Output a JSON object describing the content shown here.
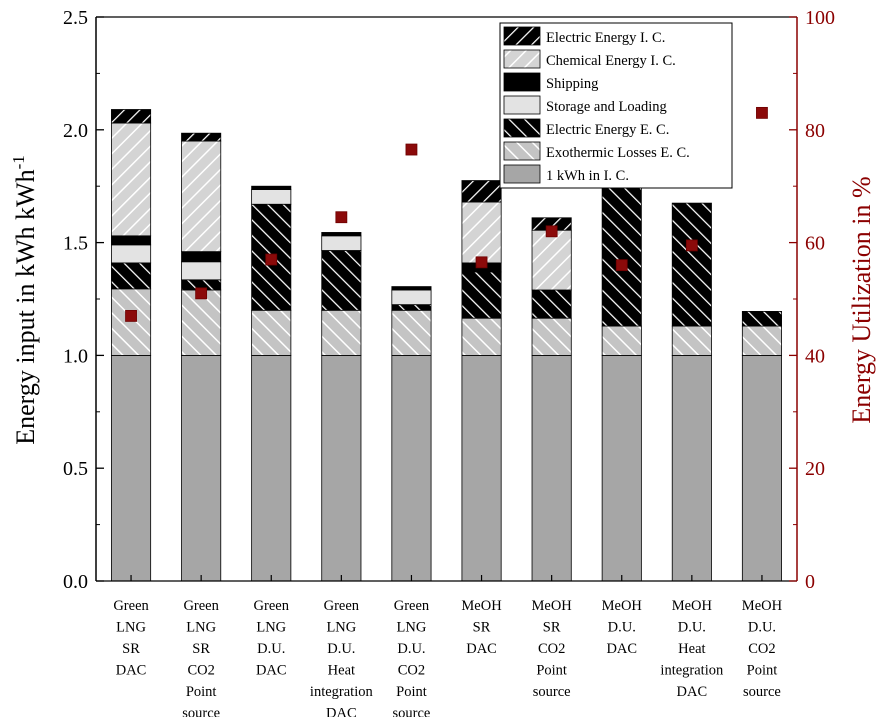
{
  "chart_data": {
    "type": "bar",
    "stacked": true,
    "categories": [
      [
        "Green",
        "LNG",
        "SR",
        "DAC"
      ],
      [
        "Green",
        "LNG",
        "SR",
        "CO2",
        "Point",
        "source"
      ],
      [
        "Green",
        "LNG",
        "D.U.",
        "DAC"
      ],
      [
        "Green",
        "LNG",
        "D.U.",
        "Heat",
        "integration",
        "DAC"
      ],
      [
        "Green",
        "LNG",
        "D.U.",
        "CO2",
        "Point",
        "source"
      ],
      [
        "MeOH",
        "SR",
        "DAC"
      ],
      [
        "MeOH",
        "SR",
        "CO2",
        "Point",
        "source"
      ],
      [
        "MeOH",
        "D.U.",
        "DAC"
      ],
      [
        "MeOH",
        "D.U.",
        "Heat",
        "integration",
        "DAC"
      ],
      [
        "MeOH",
        "D.U.",
        "CO2",
        "Point",
        "source"
      ]
    ],
    "series": [
      {
        "name": "1 kWh in I. C.",
        "pattern": "solid-gray",
        "values": [
          1.0,
          1.0,
          1.0,
          1.0,
          1.0,
          1.0,
          1.0,
          1.0,
          1.0,
          1.0
        ]
      },
      {
        "name": "Exothermic Losses E. C.",
        "pattern": "hatch-light",
        "values": [
          0.295,
          0.29,
          0.2,
          0.2,
          0.2,
          0.165,
          0.165,
          0.13,
          0.13,
          0.13
        ]
      },
      {
        "name": "Electric Energy E. C.",
        "pattern": "hatch-dark",
        "values": [
          0.115,
          0.045,
          0.47,
          0.265,
          0.025,
          0.205,
          0.125,
          0.62,
          0.545,
          0.065
        ]
      },
      {
        "name": "Storage and Loading",
        "pattern": "solid-light",
        "values": [
          0.08,
          0.08,
          0.065,
          0.065,
          0.065,
          0.0,
          0.0,
          0.0,
          0.0,
          0.0
        ]
      },
      {
        "name": "Shipping",
        "pattern": "solid-black",
        "values": [
          0.04,
          0.045,
          0.015,
          0.015,
          0.015,
          0.04,
          0.0,
          0.0,
          0.0,
          0.0
        ]
      },
      {
        "name": "Chemical Energy I. C.",
        "pattern": "backhatch-light",
        "values": [
          0.5,
          0.49,
          0.0,
          0.0,
          0.0,
          0.27,
          0.265,
          0.0,
          0.0,
          0.0
        ]
      },
      {
        "name": "Electric Energy I. C.",
        "pattern": "backhatch-dark",
        "values": [
          0.06,
          0.035,
          0.0,
          0.0,
          0.0,
          0.095,
          0.055,
          0.0,
          0.0,
          0.0
        ]
      }
    ],
    "utilization": {
      "name": "Energy Utilization in %",
      "values": [
        47.0,
        51.0,
        57.0,
        64.5,
        76.5,
        56.5,
        62.0,
        56.0,
        59.5,
        83.0
      ]
    },
    "ylabel_left": "Energy input in kWh kWh",
    "ylabel_left_sup": "-1",
    "ylabel_right": "Energy Utilization in %",
    "ylim_left": [
      0,
      2.5
    ],
    "ylim_right": [
      0,
      100
    ],
    "yticks_left": [
      "0.0",
      "0.5",
      "1.0",
      "1.5",
      "2.0",
      "2.5"
    ],
    "yticks_right": [
      "0",
      "20",
      "40",
      "60",
      "80",
      "100"
    ],
    "legend_order": [
      "Electric Energy I. C.",
      "Chemical Energy I. C.",
      "Shipping",
      "Storage and Loading",
      "Electric Energy E. C.",
      "Exothermic Losses E. C.",
      "1 kWh in I. C."
    ],
    "legend_position": "top-right",
    "colors": {
      "right_axis": "#8b0000",
      "marker": "#8b0a0a",
      "solid_gray": "#a6a6a6",
      "solid_light": "#e3e3e3",
      "hatch_light_line": "#ffffff",
      "hatch_light_bg": "#bdbdbd",
      "hatch_dark_bg": "#000000",
      "hatch_dark_line": "#ffffff",
      "backhatch_light_bg": "#d0d0d0",
      "backhatch_dark_bg": "#000000"
    }
  }
}
